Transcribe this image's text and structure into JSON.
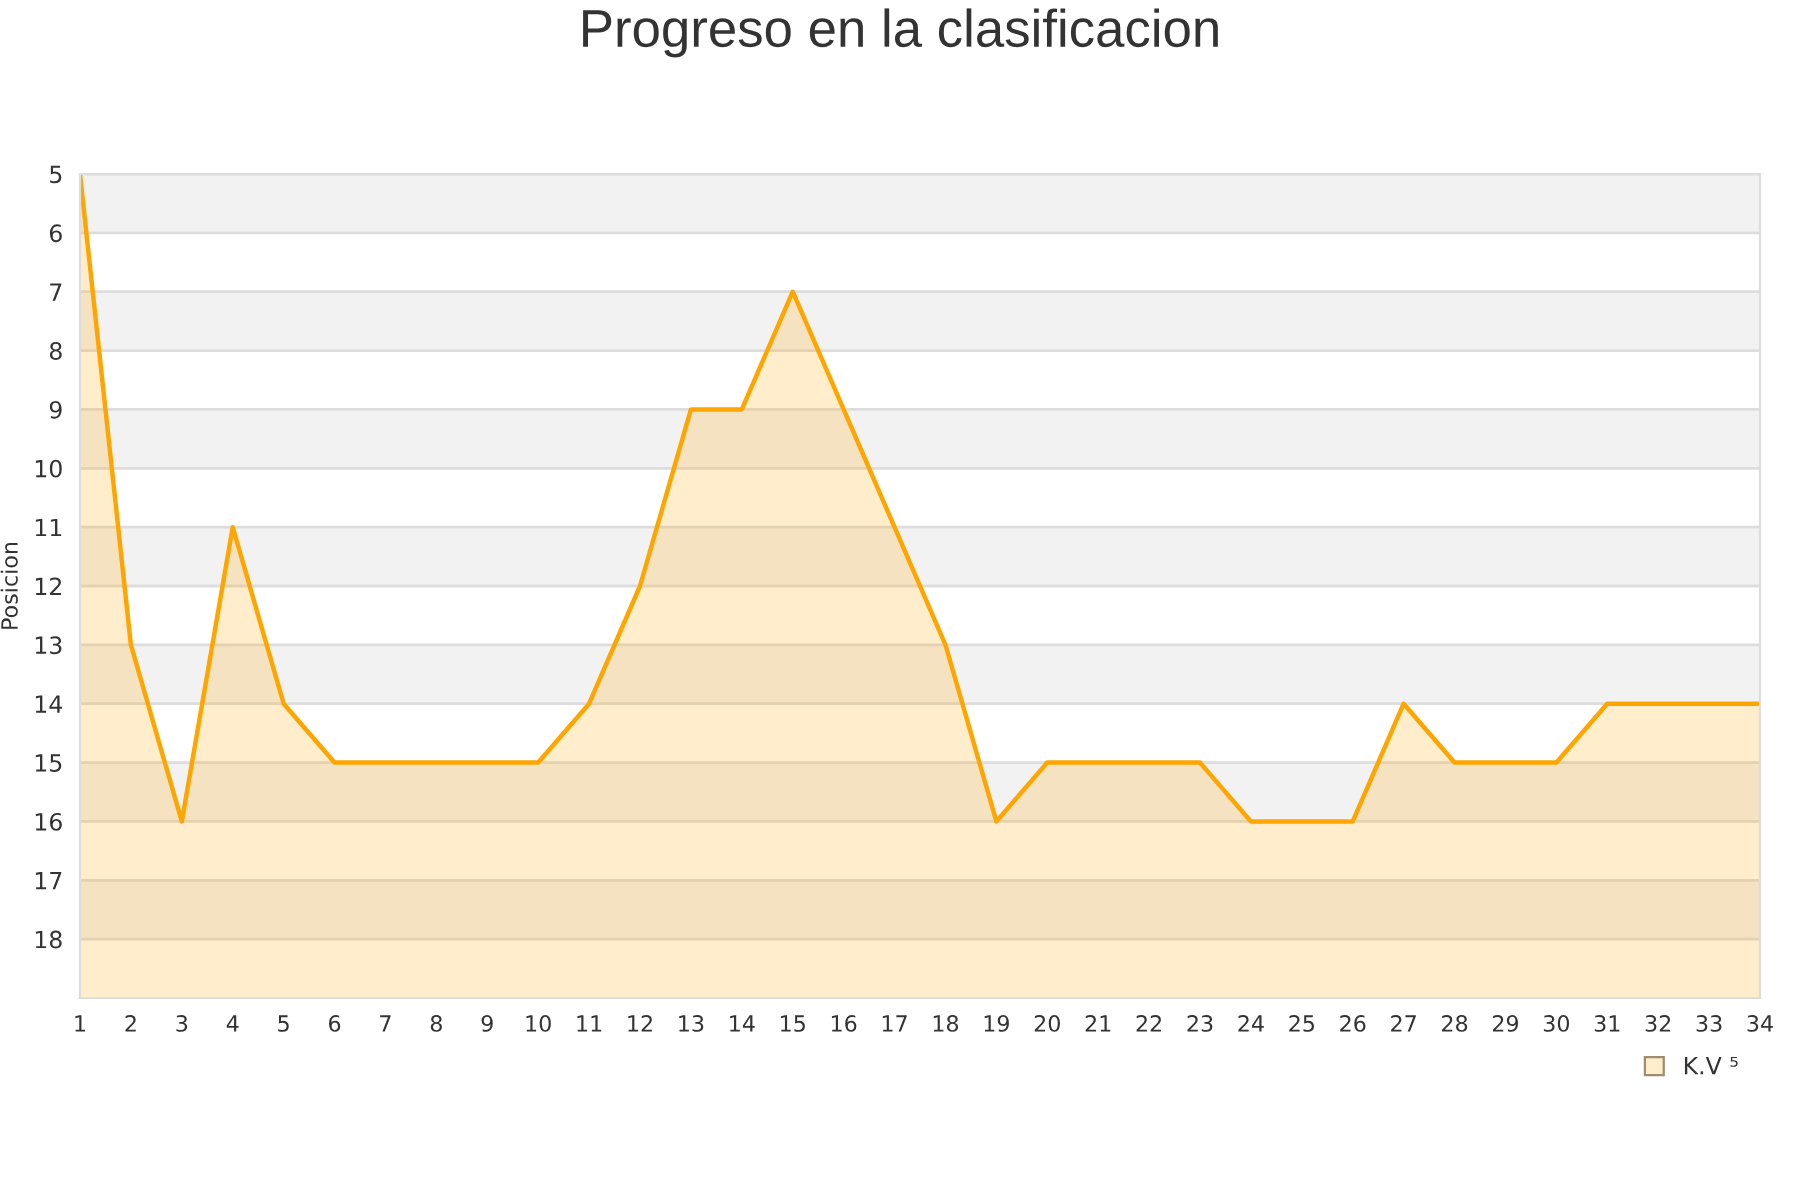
{
  "chart_data": {
    "type": "area",
    "title": "Progreso en la clasificacion",
    "ylabel": "Posicion",
    "x": [
      1,
      2,
      3,
      4,
      5,
      6,
      7,
      8,
      9,
      10,
      11,
      12,
      13,
      14,
      15,
      16,
      17,
      18,
      19,
      20,
      21,
      22,
      23,
      24,
      25,
      26,
      27,
      28,
      29,
      30,
      31,
      32,
      33,
      34
    ],
    "xlim": [
      1,
      34
    ],
    "xticks": [
      1,
      2,
      3,
      4,
      5,
      6,
      7,
      8,
      9,
      10,
      11,
      12,
      13,
      14,
      15,
      16,
      17,
      18,
      19,
      20,
      21,
      22,
      23,
      24,
      25,
      26,
      27,
      28,
      29,
      30,
      31,
      32,
      33,
      34
    ],
    "ylim": [
      19,
      5
    ],
    "yticks": [
      5,
      6,
      7,
      8,
      9,
      10,
      11,
      12,
      13,
      14,
      15,
      16,
      17,
      18
    ],
    "grid": "y",
    "legend": "bottom right",
    "marker": "none",
    "line_style": "solid",
    "series": [
      {
        "name": "K.V ⁵",
        "color": "#ffa500",
        "values": [
          5,
          13,
          16,
          11,
          14,
          15,
          15,
          15,
          15,
          15,
          14,
          12,
          9,
          9,
          7,
          9,
          11,
          13,
          16,
          15,
          15,
          15,
          15,
          16,
          16,
          16,
          14,
          15,
          15,
          15,
          14,
          14,
          14,
          14
        ]
      }
    ]
  }
}
